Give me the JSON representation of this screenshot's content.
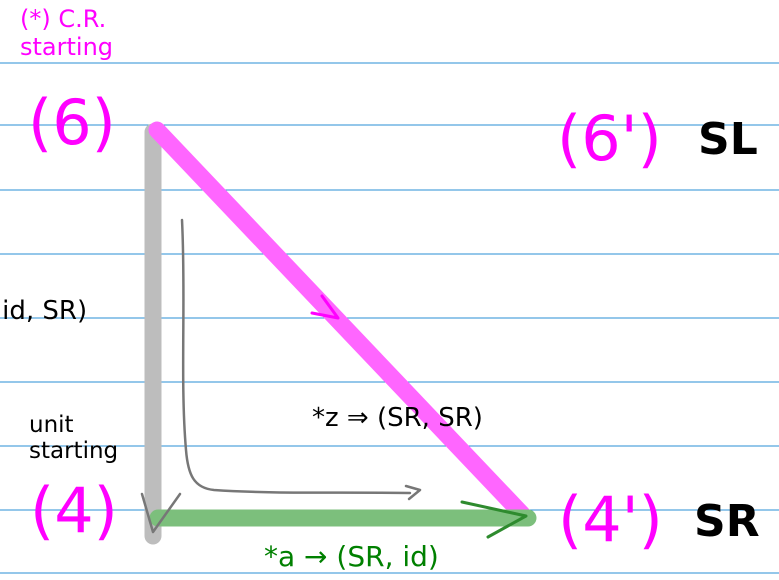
{
  "colors": {
    "rule_line": "#2a8fd6",
    "vertical_edge": "#bdbdbd",
    "diagonal_edge": "#ff66ff",
    "bottom_edge": "#7cbf7c",
    "node_label": "#ff00ff",
    "green_text": "#008000",
    "sketch_arrow": "#777777"
  },
  "annotations": {
    "cr_starting": [
      "(*) C.R.",
      "starting"
    ],
    "id_sr": "(id, SR)",
    "unit_starting": [
      "unit",
      "starting"
    ],
    "z_label": "*z ⇒   (SR, SR)",
    "a_label": "*a → (SR, id)"
  },
  "nodes": {
    "n6": "(6)",
    "n6p": "(6')",
    "sl": "SL",
    "n4": "(4)",
    "n4p": "(4')",
    "sr": "SR"
  }
}
